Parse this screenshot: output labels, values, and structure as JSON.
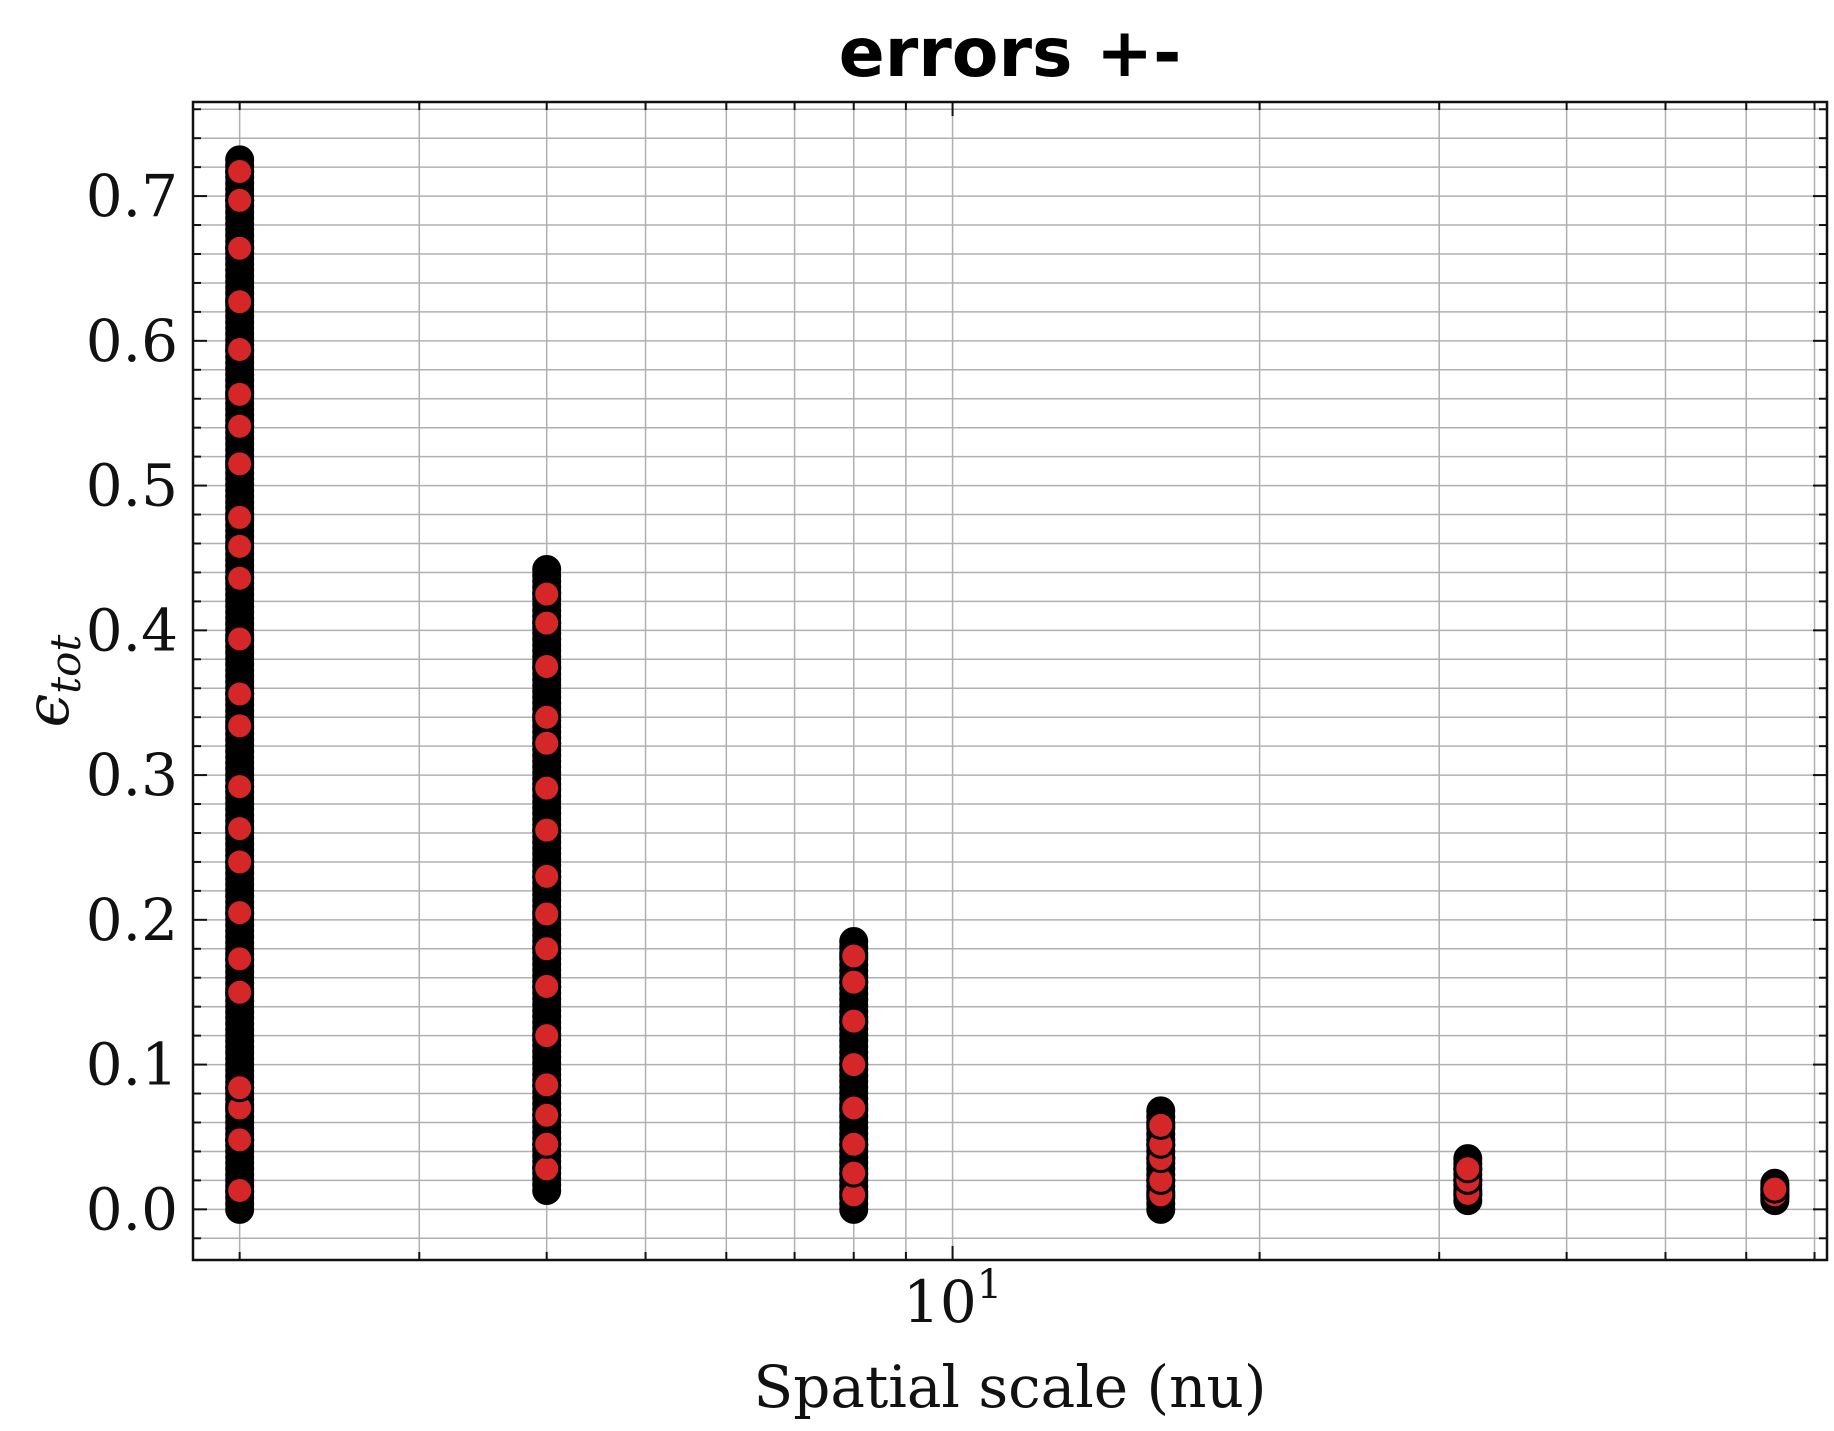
{
  "chart_data": {
    "type": "scatter",
    "title": "errors +-",
    "xlabel": "Spatial scale (nu)",
    "ylabel": {
      "symbol": "ϵ",
      "subscript": "tot"
    },
    "xscale": "log",
    "xlim": [
      1.8,
      72
    ],
    "ylim": [
      -0.035,
      0.765
    ],
    "yticks": [
      "0.0",
      "0.1",
      "0.2",
      "0.3",
      "0.4",
      "0.5",
      "0.6",
      "0.7"
    ],
    "xticks": [
      {
        "base": "10",
        "exp": "1",
        "value": 10
      }
    ],
    "grid": true,
    "colors": {
      "title": "#d62728",
      "marker_fill": "#d62728",
      "marker_edge": "#000000",
      "grid": "#b0b0b0"
    },
    "series": [
      {
        "groups": [
          {
            "x": 2,
            "min": 0.0,
            "max": 0.725,
            "highlight": [
              0.013,
              0.048,
              0.07,
              0.084,
              0.15,
              0.173,
              0.205,
              0.24,
              0.263,
              0.292,
              0.334,
              0.356,
              0.394,
              0.436,
              0.458,
              0.478,
              0.515,
              0.541,
              0.563,
              0.594,
              0.627,
              0.664,
              0.697,
              0.717
            ]
          },
          {
            "x": 4,
            "min": 0.013,
            "max": 0.442,
            "highlight": [
              0.028,
              0.045,
              0.065,
              0.086,
              0.12,
              0.154,
              0.18,
              0.204,
              0.23,
              0.262,
              0.291,
              0.322,
              0.34,
              0.375,
              0.405,
              0.425
            ]
          },
          {
            "x": 8,
            "min": 0.0,
            "max": 0.185,
            "highlight": [
              0.01,
              0.025,
              0.045,
              0.07,
              0.1,
              0.13,
              0.157,
              0.175
            ]
          },
          {
            "x": 16,
            "min": 0.0,
            "max": 0.068,
            "highlight": [
              0.01,
              0.02,
              0.035,
              0.045,
              0.058
            ]
          },
          {
            "x": 32,
            "min": 0.006,
            "max": 0.035,
            "highlight": [
              0.011,
              0.02,
              0.028
            ]
          },
          {
            "x": 64,
            "min": 0.006,
            "max": 0.018,
            "highlight": [
              0.01,
              0.014
            ]
          }
        ]
      }
    ]
  }
}
